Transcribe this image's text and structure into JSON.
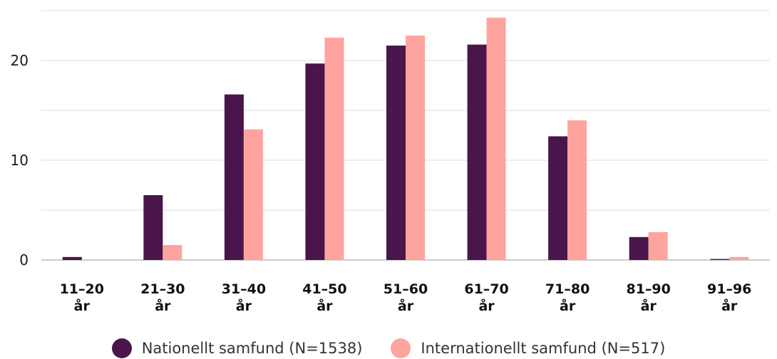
{
  "chart_data": {
    "type": "bar",
    "categories": [
      [
        "11–20",
        "år"
      ],
      [
        "21–30",
        "år"
      ],
      [
        "31–40",
        "år"
      ],
      [
        "41–50",
        "år"
      ],
      [
        "51–60",
        "år"
      ],
      [
        "61–70",
        "år"
      ],
      [
        "71–80",
        "år"
      ],
      [
        "81–90",
        "år"
      ],
      [
        "91–96",
        "år"
      ]
    ],
    "series": [
      {
        "name": "Nationellt samfund (N=1538)",
        "color": "#4a154b",
        "values": [
          0.3,
          6.5,
          16.6,
          19.7,
          21.5,
          21.6,
          12.4,
          2.3,
          0.1
        ]
      },
      {
        "name": "Internationellt samfund (N=517)",
        "color": "#ffa39e",
        "values": [
          0,
          1.5,
          13.1,
          22.3,
          22.5,
          24.3,
          14.0,
          2.8,
          0.3
        ]
      }
    ],
    "yticks": [
      0,
      10,
      20
    ],
    "ylim": [
      0,
      25
    ],
    "grid": true,
    "legend_position": "bottom"
  }
}
